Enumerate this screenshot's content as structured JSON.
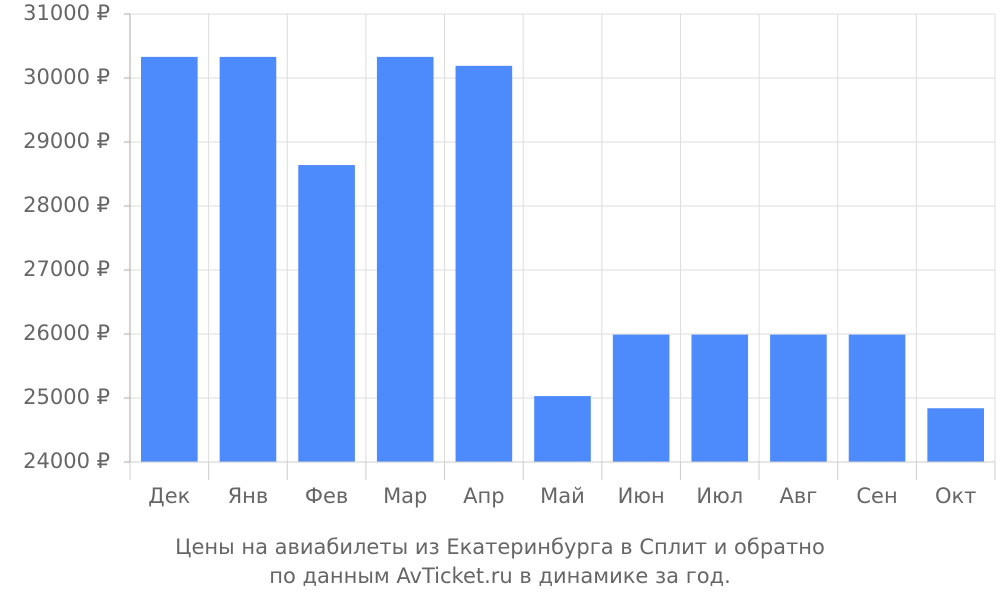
{
  "chart_data": {
    "type": "bar",
    "title": [
      "Цены на авиабилеты из Екатеринбурга в Сплит и обратно",
      "по данным AvTicket.ru в динамике за год."
    ],
    "categories": [
      "Дек",
      "Янв",
      "Фев",
      "Мар",
      "Апр",
      "Май",
      "Июн",
      "Июл",
      "Авг",
      "Сен",
      "Окт"
    ],
    "values": [
      30330,
      30330,
      28640,
      30330,
      30190,
      25030,
      25990,
      25990,
      25990,
      25990,
      24840
    ],
    "color": "#4d8afc",
    "ylim": [
      24000,
      31000
    ],
    "yticks": [
      {
        "value": 24000,
        "label": "24000 ₽"
      },
      {
        "value": 25000,
        "label": "25000 ₽"
      },
      {
        "value": 26000,
        "label": "26000 ₽"
      },
      {
        "value": 27000,
        "label": "27000 ₽"
      },
      {
        "value": 28000,
        "label": "28000 ₽"
      },
      {
        "value": 29000,
        "label": "29000 ₽"
      },
      {
        "value": 30000,
        "label": "30000 ₽"
      },
      {
        "value": 31000,
        "label": "31000 ₽"
      }
    ],
    "grid": true
  }
}
